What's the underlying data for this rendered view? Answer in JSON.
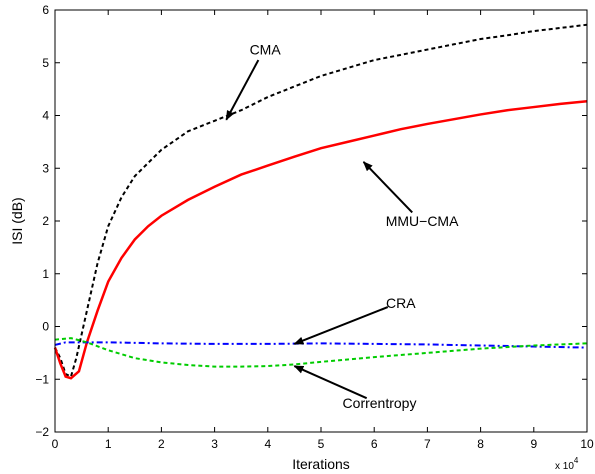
{
  "chart_data": {
    "type": "line",
    "title": "",
    "xlabel": "Iterations",
    "ylabel": "ISI (dB)",
    "x_scale_label": "x 10",
    "x_scale_exponent": "4",
    "xlim": [
      0,
      10
    ],
    "ylim": [
      -2,
      6
    ],
    "xticks": [
      "0",
      "1",
      "2",
      "3",
      "4",
      "5",
      "6",
      "7",
      "8",
      "9",
      "10"
    ],
    "yticks": [
      "−2",
      "−1",
      "0",
      "1",
      "2",
      "3",
      "4",
      "5",
      "6"
    ],
    "grid": false,
    "legend": "none",
    "series": [
      {
        "name": "CMA",
        "color": "#000000",
        "style": "dashed",
        "points": [
          [
            0,
            -0.4
          ],
          [
            0.1,
            -0.6
          ],
          [
            0.2,
            -0.9
          ],
          [
            0.3,
            -0.95
          ],
          [
            0.4,
            -0.6
          ],
          [
            0.6,
            0.3
          ],
          [
            0.8,
            1.2
          ],
          [
            1.0,
            1.9
          ],
          [
            1.25,
            2.45
          ],
          [
            1.5,
            2.85
          ],
          [
            2.0,
            3.35
          ],
          [
            2.5,
            3.7
          ],
          [
            3.0,
            3.9
          ],
          [
            3.5,
            4.1
          ],
          [
            4.0,
            4.35
          ],
          [
            4.5,
            4.55
          ],
          [
            5.0,
            4.75
          ],
          [
            5.5,
            4.9
          ],
          [
            6.0,
            5.05
          ],
          [
            6.5,
            5.15
          ],
          [
            7.0,
            5.25
          ],
          [
            7.5,
            5.35
          ],
          [
            8.0,
            5.45
          ],
          [
            8.5,
            5.52
          ],
          [
            9.0,
            5.6
          ],
          [
            9.5,
            5.66
          ],
          [
            10.0,
            5.72
          ]
        ]
      },
      {
        "name": "MMU−CMA",
        "color": "#ff0000",
        "style": "solid",
        "points": [
          [
            0,
            -0.4
          ],
          [
            0.1,
            -0.7
          ],
          [
            0.2,
            -0.95
          ],
          [
            0.3,
            -0.98
          ],
          [
            0.45,
            -0.85
          ],
          [
            0.6,
            -0.3
          ],
          [
            0.8,
            0.3
          ],
          [
            1.0,
            0.85
          ],
          [
            1.25,
            1.3
          ],
          [
            1.5,
            1.65
          ],
          [
            1.75,
            1.9
          ],
          [
            2.0,
            2.1
          ],
          [
            2.5,
            2.4
          ],
          [
            3.0,
            2.65
          ],
          [
            3.5,
            2.88
          ],
          [
            4.0,
            3.05
          ],
          [
            4.5,
            3.22
          ],
          [
            5.0,
            3.38
          ],
          [
            5.5,
            3.5
          ],
          [
            6.0,
            3.62
          ],
          [
            6.5,
            3.74
          ],
          [
            7.0,
            3.84
          ],
          [
            7.5,
            3.93
          ],
          [
            8.0,
            4.02
          ],
          [
            8.5,
            4.1
          ],
          [
            9.0,
            4.16
          ],
          [
            9.5,
            4.22
          ],
          [
            10.0,
            4.27
          ]
        ]
      },
      {
        "name": "CRA",
        "color": "#0000ff",
        "style": "dashdot",
        "points": [
          [
            0,
            -0.35
          ],
          [
            0.2,
            -0.3
          ],
          [
            0.5,
            -0.3
          ],
          [
            1.0,
            -0.3
          ],
          [
            2.0,
            -0.32
          ],
          [
            3.0,
            -0.33
          ],
          [
            4.0,
            -0.33
          ],
          [
            5.0,
            -0.32
          ],
          [
            6.0,
            -0.33
          ],
          [
            7.0,
            -0.34
          ],
          [
            8.0,
            -0.36
          ],
          [
            9.0,
            -0.38
          ],
          [
            10.0,
            -0.4
          ]
        ]
      },
      {
        "name": "Correntropy",
        "color": "#00cc00",
        "style": "dashed",
        "points": [
          [
            0,
            -0.25
          ],
          [
            0.3,
            -0.22
          ],
          [
            0.6,
            -0.3
          ],
          [
            1.0,
            -0.45
          ],
          [
            1.5,
            -0.6
          ],
          [
            2.0,
            -0.68
          ],
          [
            2.5,
            -0.73
          ],
          [
            3.0,
            -0.76
          ],
          [
            3.5,
            -0.76
          ],
          [
            4.0,
            -0.75
          ],
          [
            4.5,
            -0.72
          ],
          [
            5.0,
            -0.67
          ],
          [
            6.0,
            -0.58
          ],
          [
            7.0,
            -0.5
          ],
          [
            8.0,
            -0.42
          ],
          [
            9.0,
            -0.36
          ],
          [
            10.0,
            -0.32
          ]
        ]
      }
    ],
    "annotations": [
      {
        "label": "CMA",
        "text_at": [
          3.95,
          5.25
        ],
        "arrow_to": [
          3.22,
          3.92
        ]
      },
      {
        "label": "MMU−CMA",
        "text_at": [
          6.9,
          2.0
        ],
        "arrow_to": [
          5.8,
          3.12
        ]
      },
      {
        "label": "CRA",
        "text_at": [
          6.5,
          0.45
        ],
        "arrow_to": [
          4.5,
          -0.33
        ]
      },
      {
        "label": "Correntropy",
        "text_at": [
          6.1,
          -1.45
        ],
        "arrow_to": [
          4.5,
          -0.75
        ]
      }
    ]
  }
}
